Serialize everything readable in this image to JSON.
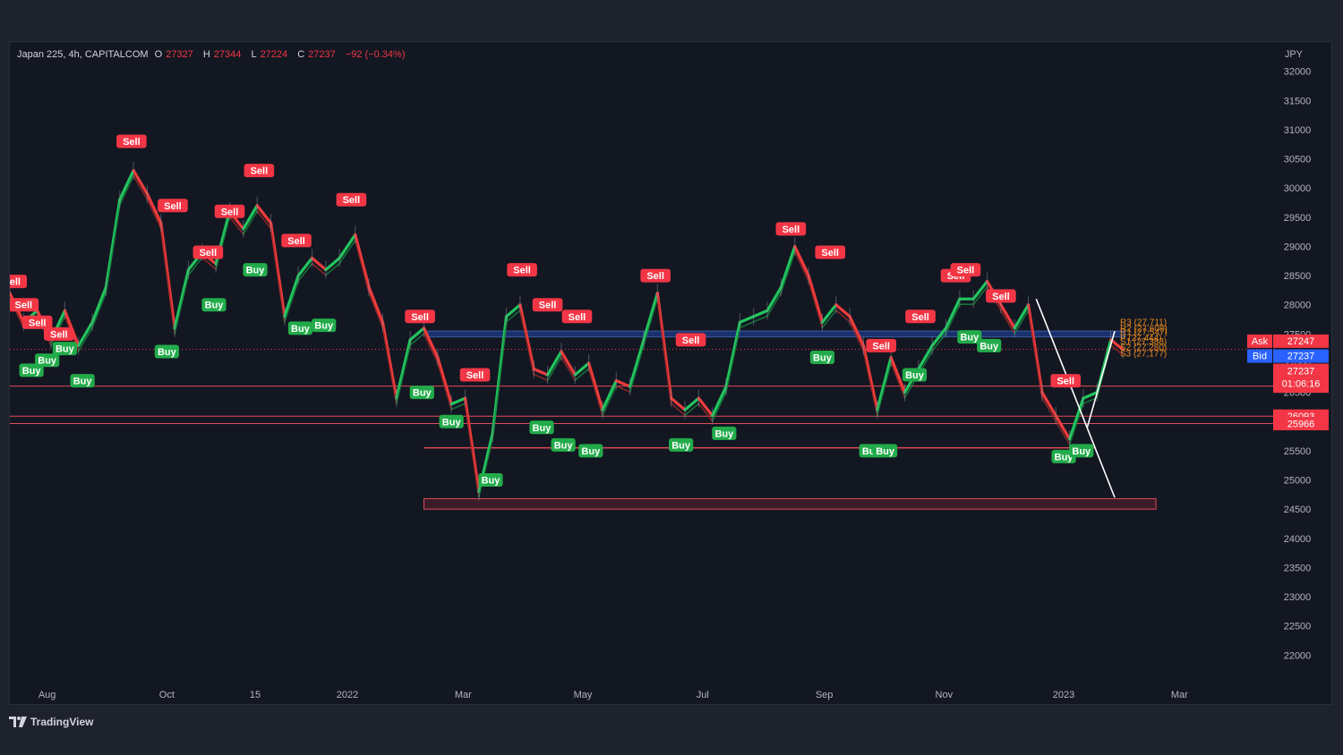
{
  "header": {
    "symbol": "Japan 225, 4h, CAPITALCOM",
    "open_label": "O",
    "open": "27327",
    "high_label": "H",
    "high": "27344",
    "low_label": "L",
    "low": "27224",
    "close_label": "C",
    "close": "27237",
    "change": "−92 (−0.34%)"
  },
  "currency": "JPY",
  "footer": {
    "brand": "TradingView"
  },
  "colors": {
    "background": "#131722",
    "up": "#22c55e",
    "down": "#ef3b3b",
    "sell_badge": "#f23645",
    "buy_badge": "#22ab4a",
    "level_line": "#e04b58",
    "ask": "#f23645",
    "bid": "#2962ff",
    "pivot_text": "#e8891d"
  },
  "chart_data": {
    "type": "line",
    "title": "",
    "xlabel": "",
    "ylabel": "",
    "ylim": [
      21500,
      32500
    ],
    "y_ticks": [
      32000,
      31500,
      31000,
      30500,
      30000,
      29500,
      29000,
      28500,
      28000,
      27500,
      27000,
      26500,
      26000,
      25500,
      25000,
      24500,
      24000,
      23500,
      23000,
      22500,
      22000
    ],
    "x_ticks": [
      {
        "label": "Aug",
        "date": "2021-08-01"
      },
      {
        "label": "Oct",
        "date": "2021-10-01"
      },
      {
        "label": "15",
        "date": "2021-11-15"
      },
      {
        "label": "2022",
        "date": "2022-01-01"
      },
      {
        "label": "Mar",
        "date": "2022-03-01"
      },
      {
        "label": "May",
        "date": "2022-05-01"
      },
      {
        "label": "Jul",
        "date": "2022-07-01"
      },
      {
        "label": "Sep",
        "date": "2022-09-01"
      },
      {
        "label": "Nov",
        "date": "2022-11-01"
      },
      {
        "label": "2023",
        "date": "2023-01-01"
      },
      {
        "label": "Mar",
        "date": "2023-03-01"
      }
    ],
    "xlim": [
      "2021-07-13",
      "2023-04-15"
    ],
    "series": [
      {
        "values": [
          {
            "x": "2021-07-13",
            "y": 28200
          },
          {
            "x": "2021-07-20",
            "y": 27700
          },
          {
            "x": "2021-07-27",
            "y": 27900
          },
          {
            "x": "2021-08-03",
            "y": 27400
          },
          {
            "x": "2021-08-10",
            "y": 27900
          },
          {
            "x": "2021-08-17",
            "y": 27300
          },
          {
            "x": "2021-08-24",
            "y": 27700
          },
          {
            "x": "2021-08-31",
            "y": 28300
          },
          {
            "x": "2021-09-07",
            "y": 29800
          },
          {
            "x": "2021-09-14",
            "y": 30300
          },
          {
            "x": "2021-09-21",
            "y": 29900
          },
          {
            "x": "2021-09-28",
            "y": 29400
          },
          {
            "x": "2021-10-05",
            "y": 27600
          },
          {
            "x": "2021-10-12",
            "y": 28600
          },
          {
            "x": "2021-10-19",
            "y": 28900
          },
          {
            "x": "2021-10-26",
            "y": 28700
          },
          {
            "x": "2021-11-02",
            "y": 29600
          },
          {
            "x": "2021-11-09",
            "y": 29300
          },
          {
            "x": "2021-11-16",
            "y": 29700
          },
          {
            "x": "2021-11-23",
            "y": 29400
          },
          {
            "x": "2021-11-30",
            "y": 27800
          },
          {
            "x": "2021-12-07",
            "y": 28500
          },
          {
            "x": "2021-12-14",
            "y": 28800
          },
          {
            "x": "2021-12-21",
            "y": 28600
          },
          {
            "x": "2021-12-28",
            "y": 28800
          },
          {
            "x": "2022-01-05",
            "y": 29200
          },
          {
            "x": "2022-01-12",
            "y": 28300
          },
          {
            "x": "2022-01-19",
            "y": 27700
          },
          {
            "x": "2022-01-26",
            "y": 26400
          },
          {
            "x": "2022-02-02",
            "y": 27400
          },
          {
            "x": "2022-02-09",
            "y": 27600
          },
          {
            "x": "2022-02-16",
            "y": 27100
          },
          {
            "x": "2022-02-23",
            "y": 26300
          },
          {
            "x": "2022-03-02",
            "y": 26400
          },
          {
            "x": "2022-03-09",
            "y": 24800
          },
          {
            "x": "2022-03-16",
            "y": 25800
          },
          {
            "x": "2022-03-23",
            "y": 27800
          },
          {
            "x": "2022-03-30",
            "y": 28000
          },
          {
            "x": "2022-04-06",
            "y": 26900
          },
          {
            "x": "2022-04-13",
            "y": 26800
          },
          {
            "x": "2022-04-20",
            "y": 27200
          },
          {
            "x": "2022-04-27",
            "y": 26800
          },
          {
            "x": "2022-05-04",
            "y": 27000
          },
          {
            "x": "2022-05-11",
            "y": 26200
          },
          {
            "x": "2022-05-18",
            "y": 26700
          },
          {
            "x": "2022-05-25",
            "y": 26600
          },
          {
            "x": "2022-06-01",
            "y": 27400
          },
          {
            "x": "2022-06-08",
            "y": 28200
          },
          {
            "x": "2022-06-15",
            "y": 26400
          },
          {
            "x": "2022-06-22",
            "y": 26200
          },
          {
            "x": "2022-06-29",
            "y": 26400
          },
          {
            "x": "2022-07-06",
            "y": 26100
          },
          {
            "x": "2022-07-13",
            "y": 26600
          },
          {
            "x": "2022-07-20",
            "y": 27700
          },
          {
            "x": "2022-07-27",
            "y": 27800
          },
          {
            "x": "2022-08-03",
            "y": 27900
          },
          {
            "x": "2022-08-10",
            "y": 28300
          },
          {
            "x": "2022-08-17",
            "y": 29000
          },
          {
            "x": "2022-08-24",
            "y": 28500
          },
          {
            "x": "2022-08-31",
            "y": 27700
          },
          {
            "x": "2022-09-07",
            "y": 28000
          },
          {
            "x": "2022-09-14",
            "y": 27800
          },
          {
            "x": "2022-09-21",
            "y": 27300
          },
          {
            "x": "2022-09-28",
            "y": 26200
          },
          {
            "x": "2022-10-05",
            "y": 27100
          },
          {
            "x": "2022-10-12",
            "y": 26500
          },
          {
            "x": "2022-10-19",
            "y": 26900
          },
          {
            "x": "2022-10-26",
            "y": 27300
          },
          {
            "x": "2022-11-02",
            "y": 27600
          },
          {
            "x": "2022-11-09",
            "y": 28100
          },
          {
            "x": "2022-11-16",
            "y": 28100
          },
          {
            "x": "2022-11-23",
            "y": 28400
          },
          {
            "x": "2022-11-30",
            "y": 28000
          },
          {
            "x": "2022-12-07",
            "y": 27600
          },
          {
            "x": "2022-12-14",
            "y": 28000
          },
          {
            "x": "2022-12-21",
            "y": 26500
          },
          {
            "x": "2022-12-28",
            "y": 26100
          },
          {
            "x": "2023-01-04",
            "y": 25700
          },
          {
            "x": "2023-01-11",
            "y": 26400
          },
          {
            "x": "2023-01-18",
            "y": 26500
          },
          {
            "x": "2023-01-25",
            "y": 27400
          },
          {
            "x": "2023-01-31",
            "y": 27237
          }
        ]
      }
    ],
    "signals": [
      {
        "x": "2021-07-14",
        "y": 28400,
        "label": "Sell",
        "kind": "sell"
      },
      {
        "x": "2021-07-20",
        "y": 28000,
        "label": "Sell",
        "kind": "sell"
      },
      {
        "x": "2021-07-27",
        "y": 27700,
        "label": "Sell",
        "kind": "sell"
      },
      {
        "x": "2021-08-07",
        "y": 27500,
        "label": "Sell",
        "kind": "sell"
      },
      {
        "x": "2021-07-24",
        "y": 26880,
        "label": "Buy",
        "kind": "buy"
      },
      {
        "x": "2021-08-01",
        "y": 27050,
        "label": "Buy",
        "kind": "buy"
      },
      {
        "x": "2021-08-10",
        "y": 27250,
        "label": "Buy",
        "kind": "buy"
      },
      {
        "x": "2021-08-19",
        "y": 26700,
        "label": "Buy",
        "kind": "buy"
      },
      {
        "x": "2021-09-13",
        "y": 30800,
        "label": "Sell",
        "kind": "sell"
      },
      {
        "x": "2021-10-04",
        "y": 29700,
        "label": "Sell",
        "kind": "sell"
      },
      {
        "x": "2021-10-01",
        "y": 27200,
        "label": "Buy",
        "kind": "buy"
      },
      {
        "x": "2021-10-22",
        "y": 28900,
        "label": "Sell",
        "kind": "sell"
      },
      {
        "x": "2021-11-02",
        "y": 29600,
        "label": "Sell",
        "kind": "sell"
      },
      {
        "x": "2021-10-25",
        "y": 28000,
        "label": "Buy",
        "kind": "buy"
      },
      {
        "x": "2021-11-17",
        "y": 30300,
        "label": "Sell",
        "kind": "sell"
      },
      {
        "x": "2021-11-15",
        "y": 28600,
        "label": "Buy",
        "kind": "buy"
      },
      {
        "x": "2021-12-06",
        "y": 29100,
        "label": "Sell",
        "kind": "sell"
      },
      {
        "x": "2021-12-08",
        "y": 27600,
        "label": "Buy",
        "kind": "buy"
      },
      {
        "x": "2021-12-20",
        "y": 27650,
        "label": "Buy",
        "kind": "buy"
      },
      {
        "x": "2022-01-03",
        "y": 29800,
        "label": "Sell",
        "kind": "sell"
      },
      {
        "x": "2022-02-07",
        "y": 27800,
        "label": "Sell",
        "kind": "sell"
      },
      {
        "x": "2022-02-08",
        "y": 26500,
        "label": "Buy",
        "kind": "buy"
      },
      {
        "x": "2022-02-23",
        "y": 26000,
        "label": "Buy",
        "kind": "buy"
      },
      {
        "x": "2022-03-07",
        "y": 26800,
        "label": "Sell",
        "kind": "sell"
      },
      {
        "x": "2022-03-15",
        "y": 25000,
        "label": "Buy",
        "kind": "buy"
      },
      {
        "x": "2022-03-31",
        "y": 28600,
        "label": "Sell",
        "kind": "sell"
      },
      {
        "x": "2022-04-13",
        "y": 28000,
        "label": "Sell",
        "kind": "sell"
      },
      {
        "x": "2022-04-10",
        "y": 25900,
        "label": "Buy",
        "kind": "buy"
      },
      {
        "x": "2022-04-21",
        "y": 25600,
        "label": "Buy",
        "kind": "buy"
      },
      {
        "x": "2022-04-28",
        "y": 27800,
        "label": "Sell",
        "kind": "sell"
      },
      {
        "x": "2022-05-05",
        "y": 25500,
        "label": "Buy",
        "kind": "buy"
      },
      {
        "x": "2022-06-07",
        "y": 28500,
        "label": "Sell",
        "kind": "sell"
      },
      {
        "x": "2022-06-20",
        "y": 25600,
        "label": "Buy",
        "kind": "buy"
      },
      {
        "x": "2022-06-25",
        "y": 27400,
        "label": "Sell",
        "kind": "sell"
      },
      {
        "x": "2022-07-12",
        "y": 25800,
        "label": "Buy",
        "kind": "buy"
      },
      {
        "x": "2022-08-15",
        "y": 29300,
        "label": "Sell",
        "kind": "sell"
      },
      {
        "x": "2022-08-31",
        "y": 27100,
        "label": "Buy",
        "kind": "buy"
      },
      {
        "x": "2022-09-04",
        "y": 28900,
        "label": "Sell",
        "kind": "sell"
      },
      {
        "x": "2022-09-30",
        "y": 27300,
        "label": "Sell",
        "kind": "sell"
      },
      {
        "x": "2022-09-25",
        "y": 25500,
        "label": "Buy",
        "kind": "buy"
      },
      {
        "x": "2022-10-02",
        "y": 25500,
        "label": "Buy",
        "kind": "buy"
      },
      {
        "x": "2022-10-17",
        "y": 26800,
        "label": "Buy",
        "kind": "buy"
      },
      {
        "x": "2022-10-20",
        "y": 27800,
        "label": "Sell",
        "kind": "sell"
      },
      {
        "x": "2022-11-07",
        "y": 28500,
        "label": "Sell",
        "kind": "sell"
      },
      {
        "x": "2022-11-12",
        "y": 28600,
        "label": "Sell",
        "kind": "sell"
      },
      {
        "x": "2022-11-14",
        "y": 27450,
        "label": "Buy",
        "kind": "buy"
      },
      {
        "x": "2022-11-30",
        "y": 28150,
        "label": "Sell",
        "kind": "sell"
      },
      {
        "x": "2022-11-24",
        "y": 27300,
        "label": "Buy",
        "kind": "buy"
      },
      {
        "x": "2023-01-02",
        "y": 26700,
        "label": "Sell",
        "kind": "sell"
      },
      {
        "x": "2023-01-01",
        "y": 25400,
        "label": "Buy",
        "kind": "buy"
      },
      {
        "x": "2023-01-10",
        "y": 25500,
        "label": "Buy",
        "kind": "buy"
      }
    ],
    "levels": [
      {
        "y": 26607,
        "label": "26607"
      },
      {
        "y": 26093,
        "label": "26093"
      },
      {
        "y": 25966,
        "label": "25966"
      }
    ],
    "support_line": {
      "y": 25550,
      "from": "2022-02-09",
      "to": "2023-01-17"
    },
    "demand_zone": {
      "y_low": 24500,
      "y_high": 24680,
      "from": "2022-02-09",
      "to": "2023-02-17"
    },
    "supply_band": {
      "y_low": 27450,
      "y_high": 27550,
      "from": "2022-02-11",
      "to": "2023-02-01"
    },
    "price_line": {
      "y": 27237,
      "label": "27237",
      "countdown": "01:06:16"
    },
    "ask": {
      "label": "Ask",
      "value": "27247",
      "y": 27247
    },
    "bid": {
      "label": "Bid",
      "value": "27237",
      "y": 27237
    },
    "pivots": [
      {
        "label": "R3 (27,711)",
        "y": 27711
      },
      {
        "label": "R2 (27,608)",
        "y": 27608
      },
      {
        "label": "R1 (27,547)",
        "y": 27547
      },
      {
        "label": "P (27,444)",
        "y": 27444
      },
      {
        "label": "S1 (27,383)",
        "y": 27383
      },
      {
        "label": "S2 (27,280)",
        "y": 27280
      },
      {
        "label": "S3 (27,177)",
        "y": 27177
      }
    ],
    "trend_lines": [
      {
        "from": {
          "x": "2022-12-18",
          "y": 28100
        },
        "to": {
          "x": "2023-01-27",
          "y": 24700
        }
      },
      {
        "from": {
          "x": "2023-01-13",
          "y": 25900
        },
        "to": {
          "x": "2023-01-27",
          "y": 27550
        }
      }
    ],
    "grid": false,
    "legend": "none"
  }
}
